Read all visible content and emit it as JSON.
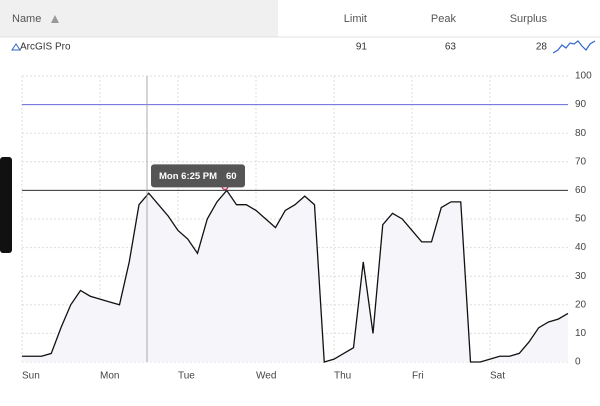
{
  "table": {
    "columns": [
      "Name",
      "Limit",
      "Peak",
      "Surplus"
    ],
    "rows": [
      [
        "ArcGIS Pro",
        91,
        63,
        28
      ]
    ]
  },
  "chart_data": {
    "type": "line",
    "categories": [
      "Sun",
      null,
      null,
      null,
      null,
      null,
      null,
      null,
      "Mon",
      null,
      null,
      null,
      null,
      null,
      null,
      null,
      "Tue",
      null,
      null,
      null,
      null,
      null,
      null,
      null,
      "Wed",
      null,
      null,
      null,
      null,
      null,
      null,
      null,
      "Thu",
      null,
      null,
      null,
      null,
      null,
      null,
      null,
      "Fri",
      null,
      null,
      null,
      null,
      null,
      null,
      null,
      "Sat",
      null,
      null,
      null,
      null,
      null,
      null,
      null,
      null
    ],
    "values": [
      2,
      2,
      2,
      3,
      12,
      20,
      25,
      23,
      22,
      21,
      20,
      35,
      55,
      59,
      55,
      51,
      46,
      43,
      38,
      50,
      56,
      60,
      55,
      55,
      53,
      50,
      47,
      53,
      55,
      58,
      55,
      0,
      1,
      3,
      5,
      35,
      10,
      48,
      52,
      50,
      46,
      42,
      42,
      54,
      56,
      56,
      0,
      0,
      1,
      2,
      2,
      3,
      7,
      12,
      14,
      15,
      17
    ],
    "color": "#111111",
    "ylim": [
      0,
      100
    ],
    "yticks": [
      0,
      10,
      20,
      30,
      40,
      50,
      60,
      70,
      80,
      90,
      100
    ],
    "grid": true,
    "reference_lines": [
      {
        "value": 90,
        "color": "#6a6ae0"
      },
      {
        "value": 60,
        "color": "#333333"
      }
    ],
    "tooltip": {
      "label": "Mon 6:25 PM",
      "value": 60
    }
  }
}
